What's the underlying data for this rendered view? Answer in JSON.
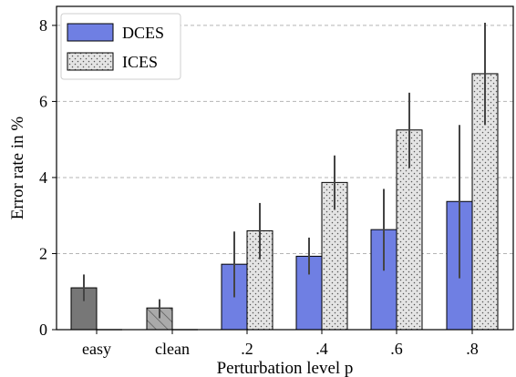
{
  "chart_data": {
    "type": "bar",
    "xlabel": "Perturbation level p",
    "ylabel": "Error rate in %",
    "ylim": [
      0,
      8.5
    ],
    "yticks": [
      0,
      2,
      4,
      6,
      8
    ],
    "grid": "y-dashed",
    "legend_position": "top-left",
    "colors": {
      "DCES": "#6f7fe3",
      "ICES": "#e4e4e4",
      "easy": "#777777",
      "clean": "#aaaaaa"
    },
    "baselines": [
      {
        "category": "easy",
        "value": 1.1,
        "err_low": 0.75,
        "err_high": 1.45,
        "fill": "#777777",
        "hatch": "none"
      },
      {
        "category": "clean",
        "value": 0.57,
        "err_low": 0.3,
        "err_high": 0.8,
        "fill": "#aaaaaa",
        "hatch": "diagonal"
      }
    ],
    "categories": [
      ".2",
      ".4",
      ".6",
      ".8"
    ],
    "series": [
      {
        "name": "DCES",
        "values": [
          1.72,
          1.93,
          2.63,
          3.37
        ],
        "err_low": [
          0.85,
          1.45,
          1.55,
          1.35
        ],
        "err_high": [
          2.58,
          2.42,
          3.7,
          5.38
        ]
      },
      {
        "name": "ICES",
        "values": [
          2.6,
          3.87,
          5.25,
          6.73
        ],
        "err_low": [
          1.85,
          3.15,
          4.25,
          5.38
        ],
        "err_high": [
          3.33,
          4.58,
          6.23,
          8.07
        ]
      }
    ],
    "all_tick_labels": [
      "easy",
      "clean",
      ".2",
      ".4",
      ".6",
      ".8"
    ]
  }
}
